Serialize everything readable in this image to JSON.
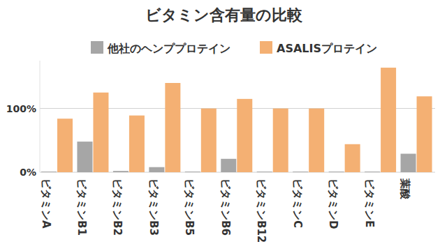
{
  "chart_data": {
    "type": "bar",
    "title": "ビタミン含有量の比較",
    "categories": [
      "ビタミンA",
      "ビタミンB1",
      "ビタミンB2",
      "ビタミンB3",
      "ビタミンB5",
      "ビタミンB6",
      "ビタミンB12",
      "ビタミンC",
      "ビタミンD",
      "ビタミンE",
      "葉酸"
    ],
    "series": [
      {
        "name": "他社のヘンププロテイン",
        "color": "#a6a6a6",
        "values": [
          1,
          48,
          2,
          8,
          1,
          21,
          1,
          1,
          1,
          1,
          29
        ]
      },
      {
        "name": "ASALISプロテイン",
        "color": "#f4b073",
        "values": [
          84,
          125,
          89,
          140,
          100,
          115,
          100,
          100,
          44,
          164,
          119
        ]
      }
    ],
    "ylim": [
      0,
      175
    ],
    "yticks": [
      {
        "value": 0,
        "label": "0%"
      },
      {
        "value": 100,
        "label": "100%"
      }
    ],
    "grid": true,
    "legend": "top"
  }
}
